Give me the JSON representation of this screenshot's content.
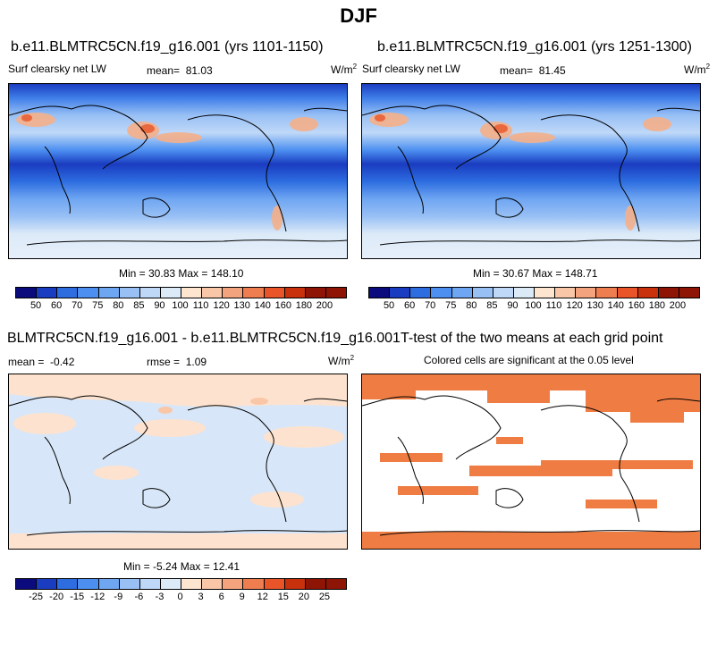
{
  "page_title": "DJF",
  "top_left": {
    "title": "b.e11.BLMTRC5CN.f19_g16.001 (yrs 1101-1150)",
    "variable": "Surf clearsky net LW",
    "mean_label": "mean=",
    "mean_value": "81.03",
    "units": "W/m",
    "units_sup": "2",
    "minmax": "Min = 30.83 Max = 148.10"
  },
  "top_right": {
    "title": "b.e11.BLMTRC5CN.f19_g16.001 (yrs 1251-1300)",
    "variable": "Surf clearsky net LW",
    "mean_label": "mean=",
    "mean_value": "81.45",
    "units": "W/m",
    "units_sup": "2",
    "minmax": "Min = 30.67 Max = 148.71"
  },
  "top_colorbar": {
    "labels": [
      "50",
      "60",
      "70",
      "75",
      "80",
      "85",
      "90",
      "100",
      "110",
      "120",
      "130",
      "140",
      "160",
      "180",
      "200"
    ],
    "colors": [
      "#0b0b7e",
      "#1a3cc0",
      "#2d6de0",
      "#4c8ff0",
      "#6fa6f2",
      "#98c0f5",
      "#bfd8f8",
      "#dceaf8",
      "#fde5d0",
      "#f9c7a8",
      "#f3a47e",
      "#ee7d4f",
      "#e95528",
      "#c9300c",
      "#8e1405"
    ]
  },
  "bottom_left": {
    "title": "BLMTRC5CN.f19_g16.001 - b.e11.BLMTRC5CN.f19_g16.001",
    "mean_label": "mean =",
    "mean_value": "-0.42",
    "rmse_label": "rmse =",
    "rmse_value": "1.09",
    "units": "W/m",
    "units_sup": "2",
    "minmax": "Min = -5.24 Max = 12.41"
  },
  "bottom_right": {
    "title": "T-test of the two means at each grid point",
    "subtitle": "Colored cells are significant at the 0.05 level"
  },
  "bottom_colorbar": {
    "labels": [
      "-25",
      "-20",
      "-15",
      "-12",
      "-9",
      "-6",
      "-3",
      "0",
      "3",
      "6",
      "9",
      "12",
      "15",
      "20",
      "25"
    ],
    "colors": [
      "#0b0b7e",
      "#1a3cc0",
      "#2d6de0",
      "#4c8ff0",
      "#6fa6f2",
      "#98c0f5",
      "#bfd8f8",
      "#dceaf8",
      "#fde5d0",
      "#f9c7a8",
      "#f3a47e",
      "#ee7d4f",
      "#e95528",
      "#c9300c",
      "#8e1405"
    ]
  },
  "colors": {
    "map_cold": "#1e4fd0",
    "map_mid": "#c7dcf8",
    "map_warm": "#f5b08a",
    "diff_pos": "#fde3cf",
    "diff_neg": "#d7e6f8",
    "significant": "#ef7d43",
    "coast": "#000000"
  }
}
